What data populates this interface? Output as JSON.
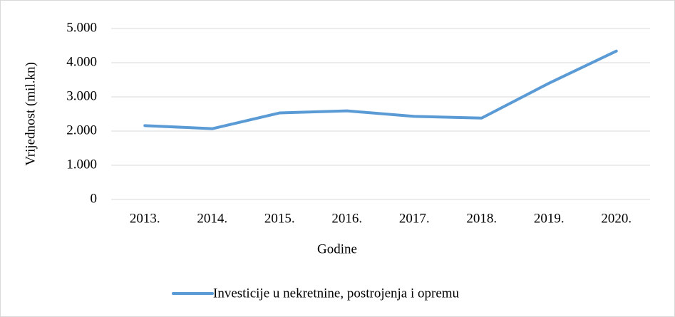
{
  "chart_data": {
    "type": "line",
    "categories": [
      "2013.",
      "2014.",
      "2015.",
      "2016.",
      "2017.",
      "2018.",
      "2019.",
      "2020."
    ],
    "series": [
      {
        "name": "Investicije u nekretnine, postrojenja i opremu",
        "color": "#5b9bd5",
        "values": [
          2160,
          2070,
          2530,
          2590,
          2430,
          2380,
          3400,
          4340
        ]
      }
    ],
    "xlabel": "Godine",
    "ylabel": "Vrijednost (mil.kn)",
    "ylim": [
      0,
      5000
    ],
    "yticks": [
      0,
      {
        "value": 1000,
        "label": "1.000"
      },
      {
        "value": 2000,
        "label": "2.000"
      },
      {
        "value": 3000,
        "label": "3.000"
      },
      {
        "value": 4000,
        "label": "4.000"
      },
      {
        "value": 5000,
        "label": "5.000"
      }
    ],
    "grid": true,
    "legend": "bottom"
  }
}
